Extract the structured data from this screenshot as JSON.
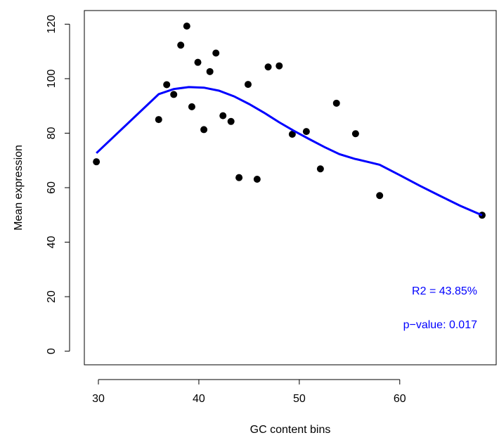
{
  "chart_data": {
    "type": "scatter",
    "title": "",
    "xlabel": "GC content bins",
    "ylabel": "Mean expression",
    "xlim": [
      28.6,
      69.6
    ],
    "ylim": [
      -5,
      125
    ],
    "x_ticks": [
      30,
      40,
      50,
      60
    ],
    "y_ticks": [
      0,
      20,
      40,
      60,
      80,
      100,
      120
    ],
    "grid": false,
    "points": [
      {
        "x": 29.8,
        "y": 69.5
      },
      {
        "x": 36.0,
        "y": 85.0
      },
      {
        "x": 36.8,
        "y": 97.8
      },
      {
        "x": 37.5,
        "y": 94.2
      },
      {
        "x": 38.2,
        "y": 112.3
      },
      {
        "x": 38.8,
        "y": 119.3
      },
      {
        "x": 39.3,
        "y": 89.7
      },
      {
        "x": 39.9,
        "y": 106.0
      },
      {
        "x": 40.5,
        "y": 81.3
      },
      {
        "x": 41.1,
        "y": 102.6
      },
      {
        "x": 41.7,
        "y": 109.4
      },
      {
        "x": 42.4,
        "y": 86.4
      },
      {
        "x": 43.2,
        "y": 84.3
      },
      {
        "x": 44.0,
        "y": 63.7
      },
      {
        "x": 44.9,
        "y": 97.9
      },
      {
        "x": 45.8,
        "y": 63.1
      },
      {
        "x": 46.9,
        "y": 104.3
      },
      {
        "x": 48.0,
        "y": 104.7
      },
      {
        "x": 49.3,
        "y": 79.6
      },
      {
        "x": 50.7,
        "y": 80.6
      },
      {
        "x": 52.1,
        "y": 66.9
      },
      {
        "x": 53.7,
        "y": 91.0
      },
      {
        "x": 55.6,
        "y": 79.8
      },
      {
        "x": 58.0,
        "y": 57.1
      },
      {
        "x": 68.2,
        "y": 49.9
      }
    ],
    "fit_line": {
      "color": "#0000ff",
      "points": [
        [
          29.8,
          72.7
        ],
        [
          36.0,
          94.3
        ],
        [
          37.5,
          96.2
        ],
        [
          39.0,
          96.9
        ],
        [
          40.5,
          96.7
        ],
        [
          42.0,
          95.6
        ],
        [
          43.5,
          93.5
        ],
        [
          45.0,
          90.7
        ],
        [
          46.5,
          87.5
        ],
        [
          48.0,
          84.0
        ],
        [
          49.5,
          80.8
        ],
        [
          51.0,
          77.8
        ],
        [
          52.5,
          74.9
        ],
        [
          54.0,
          72.3
        ],
        [
          55.5,
          70.6
        ],
        [
          57.0,
          69.3
        ],
        [
          58.0,
          68.4
        ],
        [
          60.0,
          64.6
        ],
        [
          62.0,
          60.7
        ],
        [
          64.0,
          57.0
        ],
        [
          66.0,
          53.4
        ],
        [
          68.2,
          49.9
        ]
      ]
    },
    "point_color": "#000000",
    "annotations": {
      "r2": "R2 = 43.85%",
      "pvalue": "p−value: 0.017",
      "color": "#0000ff"
    }
  }
}
